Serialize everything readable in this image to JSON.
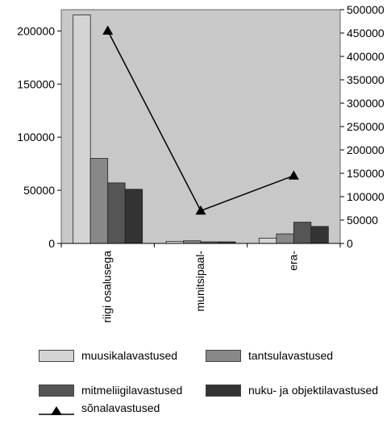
{
  "chart_data": {
    "type": "bar+line",
    "categories": [
      "riigi osalusega",
      "munitsipaal-",
      "era-"
    ],
    "bar_series": [
      {
        "name": "muusikalavastused",
        "color": "#d4d4d4",
        "values": [
          215000,
          2000,
          5000
        ]
      },
      {
        "name": "tantsulavastused",
        "color": "#888888",
        "values": [
          80000,
          2500,
          9000
        ]
      },
      {
        "name": "mitmeliigilavastused",
        "color": "#555555",
        "values": [
          57000,
          1500,
          20000
        ]
      },
      {
        "name": "nuku- ja objektilavastused",
        "color": "#333333",
        "values": [
          51000,
          1500,
          16000
        ]
      }
    ],
    "line_series": {
      "name": "sõnalavastused",
      "values": [
        455000,
        70000,
        145000
      ],
      "marker": "triangle",
      "color": "#000000"
    },
    "y_left": {
      "min": 0,
      "max": 220000,
      "ticks": [
        0,
        50000,
        100000,
        150000,
        200000
      ]
    },
    "y_right": {
      "min": 0,
      "max": 500000,
      "ticks": [
        0,
        50000,
        100000,
        150000,
        200000,
        250000,
        300000,
        350000,
        400000,
        450000,
        500000
      ]
    },
    "plot_background": "#c8c8c8",
    "legend_position": "bottom"
  }
}
